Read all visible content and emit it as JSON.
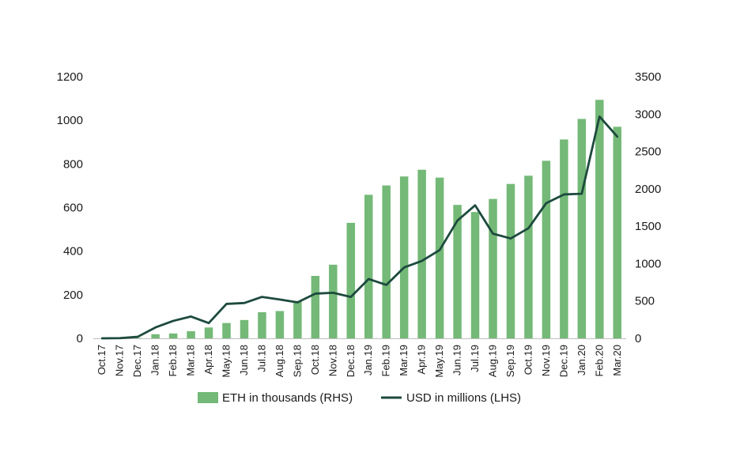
{
  "chart_data": {
    "type": "bar+line",
    "title": "",
    "categories": [
      "Oct.17",
      "Nov.17",
      "Dec.17",
      "Jan.18",
      "Feb.18",
      "Mar.18",
      "Apr.18",
      "May.18",
      "Jun.18",
      "Jul.18",
      "Aug.18",
      "Sep.18",
      "Oct.18",
      "Nov.18",
      "Dec.18",
      "Jan.19",
      "Feb.19",
      "Mar.19",
      "Apr.19",
      "May.19",
      "Jun.19",
      "Jul.19",
      "Aug.19",
      "Sep.19",
      "Oct.19",
      "Nov.19",
      "Dec.19",
      "Jan.20",
      "Feb.20",
      "Mar.20"
    ],
    "series": [
      {
        "name": "ETH in thousands (RHS)",
        "type": "bar",
        "axis": "right",
        "color": "#74b977",
        "values": [
          0,
          0,
          5,
          55,
          65,
          95,
          145,
          205,
          245,
          350,
          365,
          500,
          835,
          985,
          1545,
          1920,
          2045,
          2165,
          2255,
          2150,
          1785,
          1690,
          1865,
          2065,
          2175,
          2375,
          2660,
          2935,
          3190,
          2830
        ]
      },
      {
        "name": "USD in millions (LHS)",
        "type": "line",
        "axis": "left",
        "color": "#1d4a3e",
        "values": [
          0,
          1,
          7,
          50,
          80,
          100,
          70,
          158,
          162,
          190,
          178,
          165,
          205,
          209,
          190,
          272,
          245,
          325,
          355,
          405,
          540,
          610,
          480,
          458,
          505,
          620,
          660,
          663,
          1017,
          925
        ]
      }
    ],
    "y_left": {
      "min": 0,
      "max": 1200,
      "ticks": [
        0,
        200,
        400,
        600,
        800,
        1000,
        1200
      ]
    },
    "y_right": {
      "min": 0,
      "max": 3500,
      "ticks": [
        0,
        500,
        1000,
        1500,
        2000,
        2500,
        3000,
        3500
      ]
    },
    "grid": false,
    "legend_position": "bottom"
  }
}
